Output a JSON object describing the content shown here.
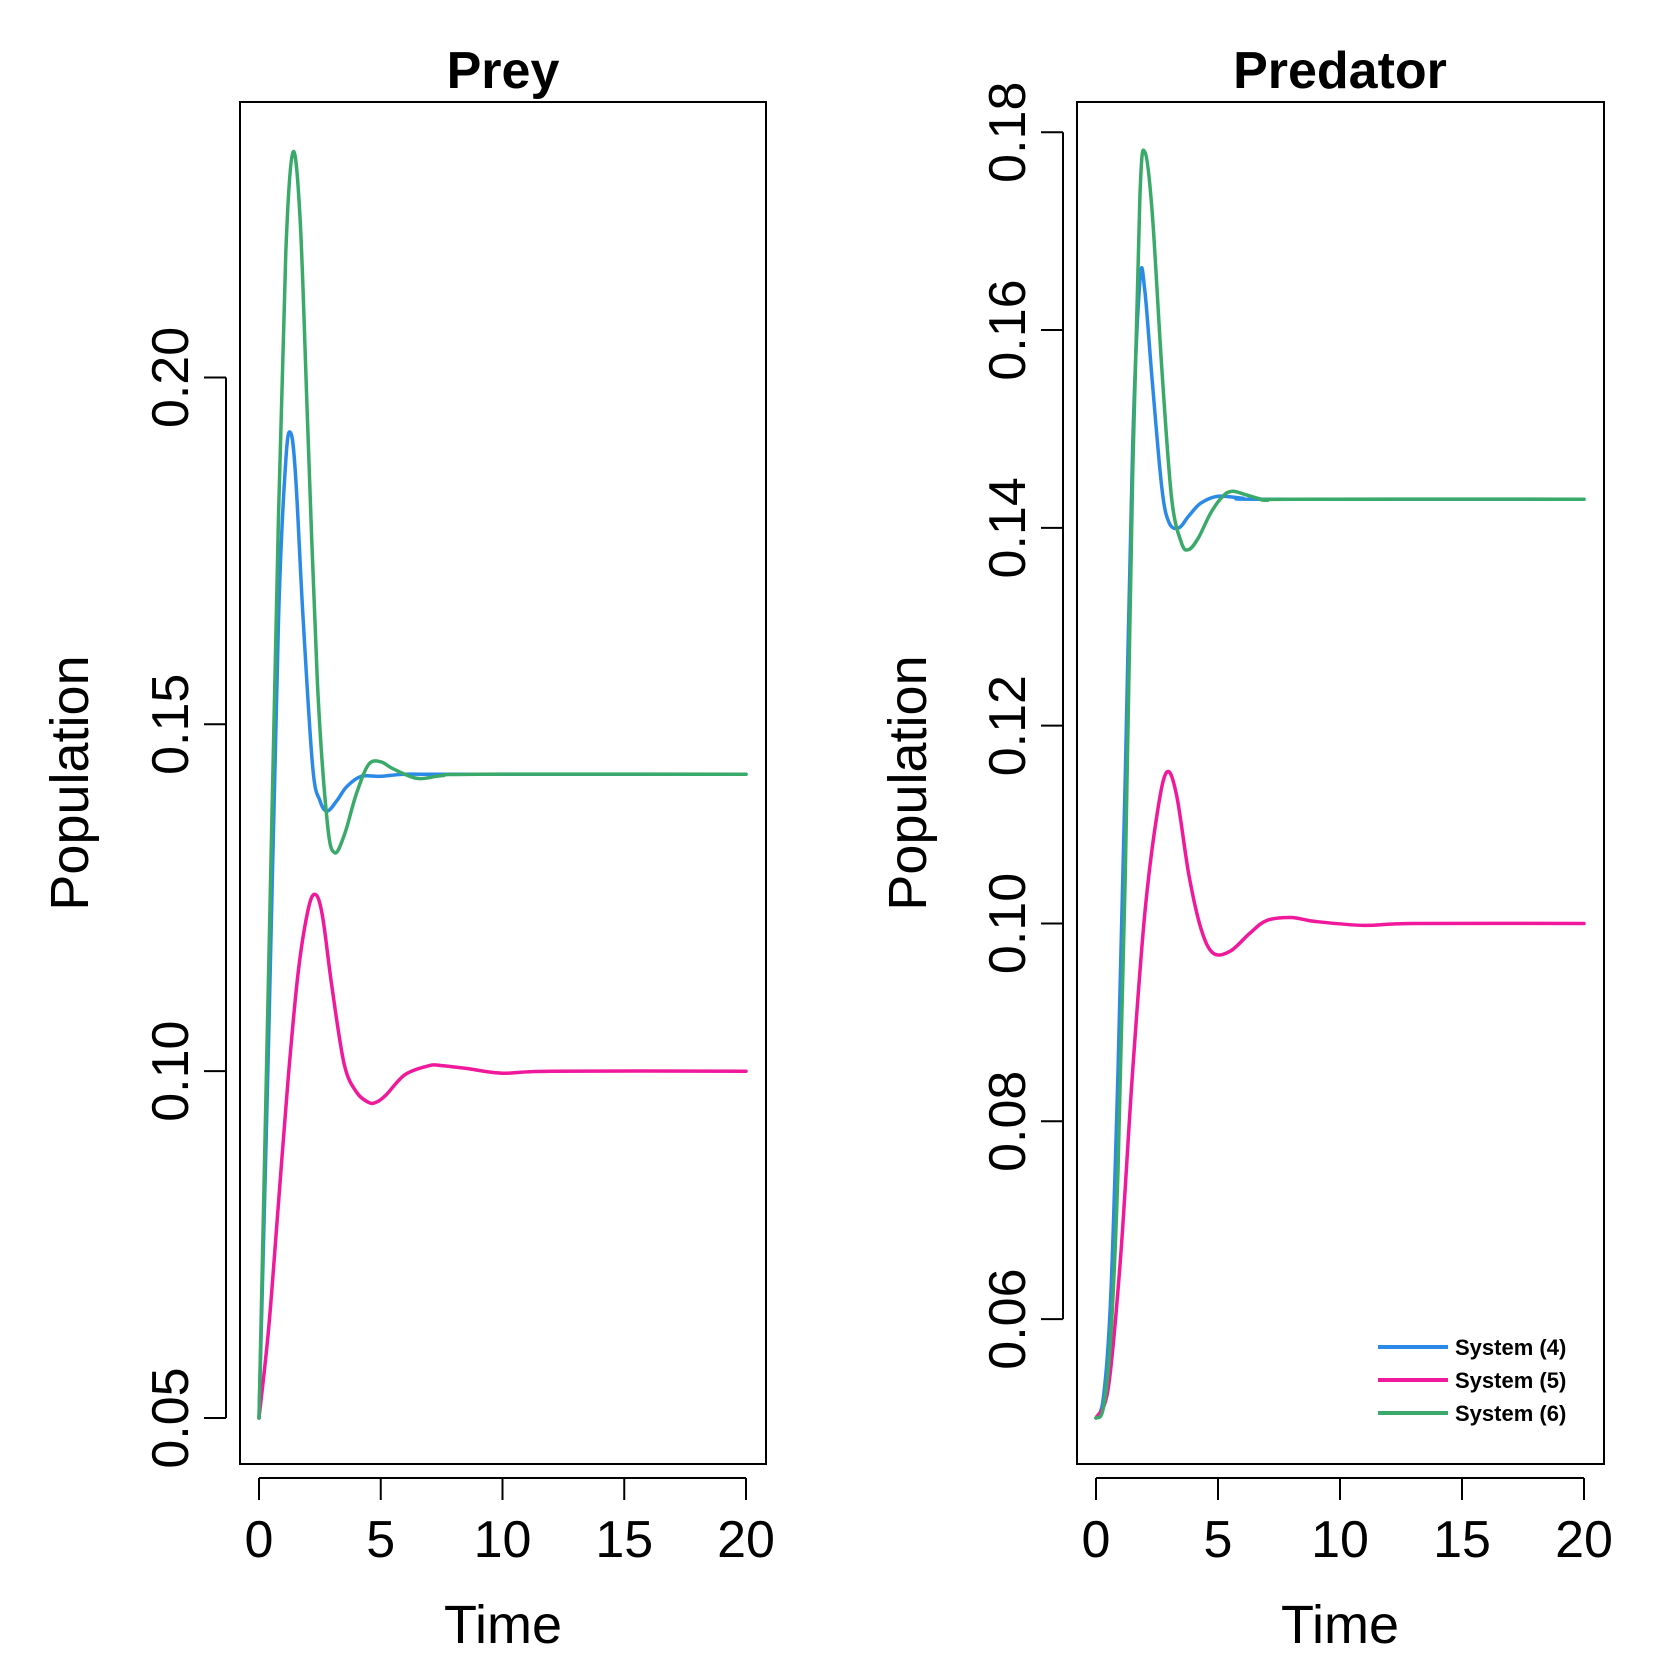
{
  "colors": {
    "system4": "#2b8ae8",
    "system5": "#f0199c",
    "system6": "#3aaa6a"
  },
  "chart_data": [
    {
      "type": "line",
      "title": "Prey",
      "xlabel": "Time",
      "ylabel": "Population",
      "xlim": [
        0,
        20
      ],
      "ylim": [
        0.05,
        0.2325
      ],
      "xticks": [
        0,
        5,
        10,
        15,
        20
      ],
      "xtick_labels": [
        "0",
        "5",
        "10",
        "15",
        "20"
      ],
      "yticks": [
        0.05,
        0.1,
        0.15,
        0.2
      ],
      "ytick_labels": [
        "0.05",
        "0.10",
        "0.15",
        "0.20"
      ],
      "series": [
        {
          "name": "System (4)",
          "color_key": "system4",
          "x": [
            0,
            0.4,
            0.8,
            1.1,
            1.3,
            1.5,
            1.8,
            2.2,
            2.5,
            2.8,
            3.2,
            3.6,
            4.2,
            5.0,
            6.0,
            8.0,
            20
          ],
          "y": [
            0.05,
            0.105,
            0.165,
            0.188,
            0.192,
            0.186,
            0.166,
            0.144,
            0.139,
            0.1375,
            0.139,
            0.141,
            0.1425,
            0.1425,
            0.1428,
            0.1428,
            0.1428
          ]
        },
        {
          "name": "System (5)",
          "color_key": "system5",
          "x": [
            0,
            0.4,
            0.8,
            1.2,
            1.6,
            2.0,
            2.3,
            2.6,
            3.0,
            3.5,
            4.0,
            4.5,
            4.8,
            5.2,
            6.0,
            7.0,
            7.5,
            8.5,
            10.0,
            12.0,
            20
          ],
          "y": [
            0.05,
            0.063,
            0.081,
            0.099,
            0.114,
            0.123,
            0.1255,
            0.1225,
            0.112,
            0.101,
            0.097,
            0.0955,
            0.0955,
            0.0965,
            0.0995,
            0.1008,
            0.1008,
            0.1004,
            0.0997,
            0.1,
            0.1
          ]
        },
        {
          "name": "System (6)",
          "color_key": "system6",
          "x": [
            0,
            0.4,
            0.8,
            1.1,
            1.4,
            1.7,
            2.0,
            2.4,
            2.8,
            3.1,
            3.5,
            4.0,
            4.5,
            5.0,
            5.5,
            6.5,
            7.5,
            9.0,
            20
          ],
          "y": [
            0.05,
            0.115,
            0.18,
            0.218,
            0.2325,
            0.222,
            0.193,
            0.156,
            0.136,
            0.1315,
            0.134,
            0.14,
            0.1442,
            0.1446,
            0.1436,
            0.1422,
            0.1426,
            0.1428,
            0.1428
          ]
        }
      ]
    },
    {
      "type": "line",
      "title": "Predator",
      "xlabel": "Time",
      "ylabel": "Population",
      "xlim": [
        0,
        20
      ],
      "ylim": [
        0.05,
        0.178
      ],
      "xticks": [
        0,
        5,
        10,
        15,
        20
      ],
      "xtick_labels": [
        "0",
        "5",
        "10",
        "15",
        "20"
      ],
      "yticks": [
        0.06,
        0.08,
        0.1,
        0.12,
        0.14,
        0.16,
        0.18
      ],
      "ytick_labels": [
        "0.06",
        "0.08",
        "0.10",
        "0.12",
        "0.14",
        "0.16",
        "0.18"
      ],
      "legend": {
        "position": "bottom-right",
        "entries": [
          "System (4)",
          "System (5)",
          "System (6)"
        ]
      },
      "series": [
        {
          "name": "System (4)",
          "color_key": "system4",
          "x": [
            0,
            0.3,
            0.6,
            0.9,
            1.2,
            1.5,
            1.8,
            2.0,
            2.3,
            2.7,
            3.0,
            3.4,
            3.8,
            4.3,
            5.0,
            6.0,
            7.0,
            20
          ],
          "y": [
            0.05,
            0.052,
            0.062,
            0.085,
            0.115,
            0.148,
            0.165,
            0.164,
            0.155,
            0.144,
            0.1405,
            0.14,
            0.1412,
            0.1425,
            0.1432,
            0.143,
            0.1429,
            0.1429
          ]
        },
        {
          "name": "System (5)",
          "color_key": "system5",
          "x": [
            0,
            0.5,
            1.0,
            1.5,
            2.0,
            2.5,
            2.9,
            3.3,
            3.8,
            4.3,
            4.8,
            5.5,
            6.3,
            7.0,
            8.0,
            9.0,
            11.0,
            13.0,
            20
          ],
          "y": [
            0.05,
            0.053,
            0.066,
            0.085,
            0.101,
            0.111,
            0.1153,
            0.113,
            0.105,
            0.0995,
            0.097,
            0.0972,
            0.099,
            0.1003,
            0.1006,
            0.1002,
            0.0998,
            0.1,
            0.1
          ]
        },
        {
          "name": "System (6)",
          "color_key": "system6",
          "x": [
            0,
            0.3,
            0.6,
            0.9,
            1.2,
            1.5,
            1.8,
            2.0,
            2.3,
            2.7,
            3.1,
            3.5,
            3.8,
            4.2,
            4.7,
            5.2,
            5.6,
            6.2,
            7.0,
            8.0,
            20
          ],
          "y": [
            0.05,
            0.051,
            0.058,
            0.075,
            0.105,
            0.145,
            0.1735,
            0.178,
            0.172,
            0.156,
            0.143,
            0.1385,
            0.1378,
            0.139,
            0.1415,
            0.1432,
            0.1437,
            0.1433,
            0.1428,
            0.1429,
            0.1429
          ]
        }
      ]
    }
  ]
}
